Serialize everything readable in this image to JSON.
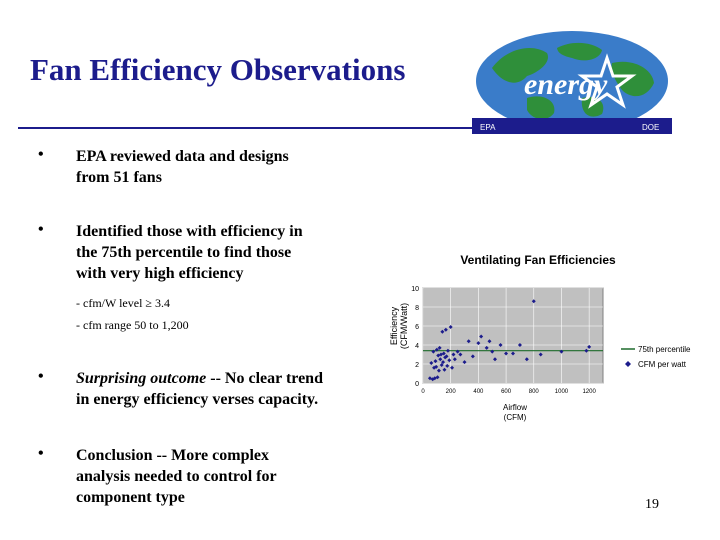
{
  "slide": {
    "title": "Fan Efficiency Observations",
    "page_number": "19",
    "colors": {
      "title": "#1c1c8c",
      "rule": "#1c1c8c",
      "plot_area": "#c0c0c0",
      "points": "#1c1c8c"
    }
  },
  "logo": {
    "wordmark": "energy",
    "left_label": "EPA",
    "right_label": "DOE",
    "icon": "energy-star-globe-logo",
    "colors": {
      "globe_blue": "#3a7cc9",
      "land_green": "#2f8f3a"
    }
  },
  "bullets": [
    {
      "lines": [
        "EPA reviewed data and designs",
        "from 51 fans"
      ]
    },
    {
      "lines": [
        "Identified those with efficiency in",
        "the 75th percentile to find those",
        "with very high efficiency"
      ]
    }
  ],
  "sub_bullets": [
    {
      "text": "-  cfm/W level ≥ 3.4"
    },
    {
      "text": "-  cfm range 50 to 1,200"
    }
  ],
  "bullet_outcome": {
    "em": "Surprising outcome",
    "rest": " -- No clear trend",
    "line2": "in energy efficiency verses capacity."
  },
  "bullet_conclusion": {
    "lines": [
      "Conclusion -- More complex",
      "analysis needed to control for",
      "component type"
    ]
  },
  "chart_data": {
    "type": "scatter",
    "title": "Ventilating Fan Efficiencies",
    "xlabel": "Airflow (CFM)",
    "xlabel_lines": [
      "Airflow",
      "(CFM)"
    ],
    "ylabel": "Efficiency (CFM/Watt)",
    "ylabel_lines": [
      "Efficiency",
      "(CFM/Watt)"
    ],
    "xlim": [
      0,
      1300
    ],
    "ylim": [
      0,
      10
    ],
    "x_ticks": [
      0,
      200,
      400,
      600,
      800,
      1000,
      1200
    ],
    "x_tick_labels": [
      "0",
      "200",
      "400",
      "600",
      "800",
      "1000",
      "1200"
    ],
    "y_ticks": [
      0,
      2,
      4,
      6,
      8,
      10
    ],
    "y_tick_labels": [
      "0",
      "2",
      "4",
      "6",
      "8",
      "10"
    ],
    "grid": true,
    "legend": "right",
    "reference_line": {
      "name": "75th percentile",
      "y": 3.4
    },
    "series": [
      {
        "name": "CFM per watt",
        "points": [
          [
            50,
            0.5
          ],
          [
            60,
            2.1
          ],
          [
            70,
            0.4
          ],
          [
            75,
            3.3
          ],
          [
            80,
            1.6
          ],
          [
            85,
            0.5
          ],
          [
            90,
            2.3
          ],
          [
            95,
            1.7
          ],
          [
            100,
            3.5
          ],
          [
            105,
            0.6
          ],
          [
            110,
            2.9
          ],
          [
            115,
            1.3
          ],
          [
            120,
            3.7
          ],
          [
            125,
            2.5
          ],
          [
            130,
            3.0
          ],
          [
            135,
            1.9
          ],
          [
            140,
            5.4
          ],
          [
            145,
            2.2
          ],
          [
            150,
            3.1
          ],
          [
            155,
            1.4
          ],
          [
            160,
            2.7
          ],
          [
            165,
            5.6
          ],
          [
            170,
            2.8
          ],
          [
            175,
            1.8
          ],
          [
            180,
            3.4
          ],
          [
            190,
            2.4
          ],
          [
            200,
            5.9
          ],
          [
            210,
            1.6
          ],
          [
            220,
            3.0
          ],
          [
            230,
            2.5
          ],
          [
            250,
            3.3
          ],
          [
            270,
            3.0
          ],
          [
            300,
            2.2
          ],
          [
            330,
            4.4
          ],
          [
            360,
            2.8
          ],
          [
            400,
            4.2
          ],
          [
            420,
            4.9
          ],
          [
            460,
            3.7
          ],
          [
            480,
            4.4
          ],
          [
            500,
            3.3
          ],
          [
            520,
            2.5
          ],
          [
            560,
            4.0
          ],
          [
            600,
            3.1
          ],
          [
            650,
            3.1
          ],
          [
            700,
            4.0
          ],
          [
            750,
            2.5
          ],
          [
            800,
            8.6
          ],
          [
            850,
            3.0
          ],
          [
            1000,
            3.3
          ],
          [
            1180,
            3.4
          ],
          [
            1200,
            3.8
          ]
        ]
      }
    ]
  }
}
